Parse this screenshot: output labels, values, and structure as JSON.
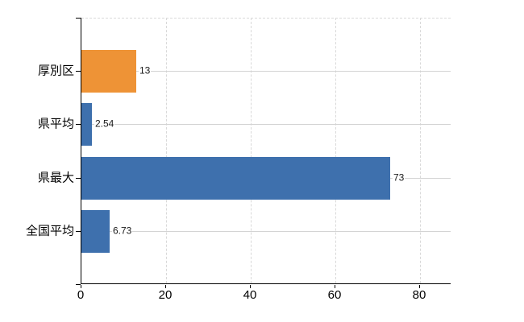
{
  "chart_data": {
    "type": "bar",
    "orientation": "horizontal",
    "title": "",
    "xlabel": "",
    "ylabel": "",
    "categories": [
      "厚別区",
      "県平均",
      "県最大",
      "全国平均"
    ],
    "values": [
      13,
      2.54,
      73,
      6.73
    ],
    "value_labels": [
      "13",
      "2.54",
      "73",
      "6.73"
    ],
    "bar_colors": [
      "#ee9336",
      "#3e70ad",
      "#3e70ad",
      "#3e70ad"
    ],
    "x_ticks": [
      "0",
      "20",
      "40",
      "60",
      "80"
    ],
    "x_tick_values": [
      0,
      20,
      40,
      60,
      80
    ],
    "xlim": [
      0,
      87.5
    ],
    "grid": {
      "vertical": "dashed",
      "horizontal": "solid-at-category-centers"
    },
    "legend": "none"
  },
  "colors": {
    "bar_blue": "#3e70ad",
    "bar_orange": "#ee9336",
    "gridline": "#d3d3d3",
    "gridline_dashed": "#d9d9d9",
    "axis": "#000000",
    "value_label_text": "#1a1a1a",
    "tick_label_text": "#000000",
    "background": "#ffffff"
  }
}
